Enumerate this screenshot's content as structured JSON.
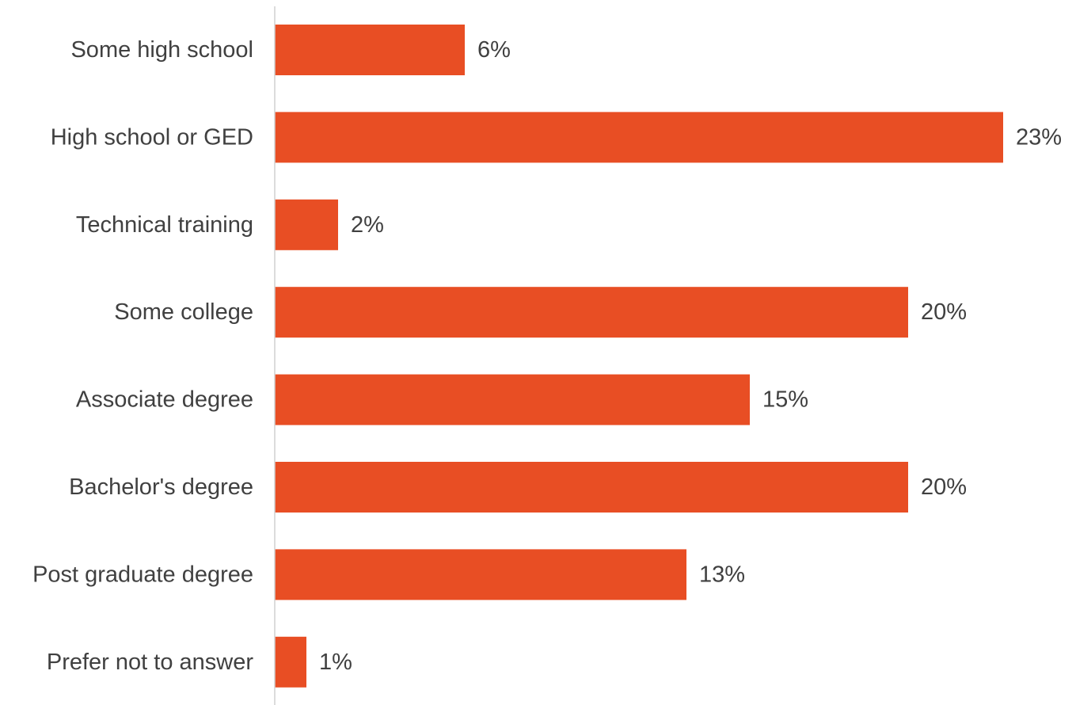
{
  "chart_data": {
    "type": "bar",
    "orientation": "horizontal",
    "categories": [
      "Some high school",
      "High school or GED",
      "Technical training",
      "Some college",
      "Associate degree",
      "Bachelor's degree",
      "Post graduate degree",
      "Prefer not to answer"
    ],
    "values": [
      6,
      23,
      2,
      20,
      15,
      20,
      13,
      1
    ],
    "value_labels": [
      "6%",
      "23%",
      "2%",
      "20%",
      "15%",
      "20%",
      "13%",
      "1%"
    ],
    "title": "",
    "xlabel": "",
    "ylabel": "",
    "unit": "%",
    "xlim": [
      0,
      23
    ],
    "grid": false,
    "legend": "none",
    "bar_color": "#E84E24",
    "axis_color": "#D0D0D0",
    "text_color": "#404040"
  }
}
